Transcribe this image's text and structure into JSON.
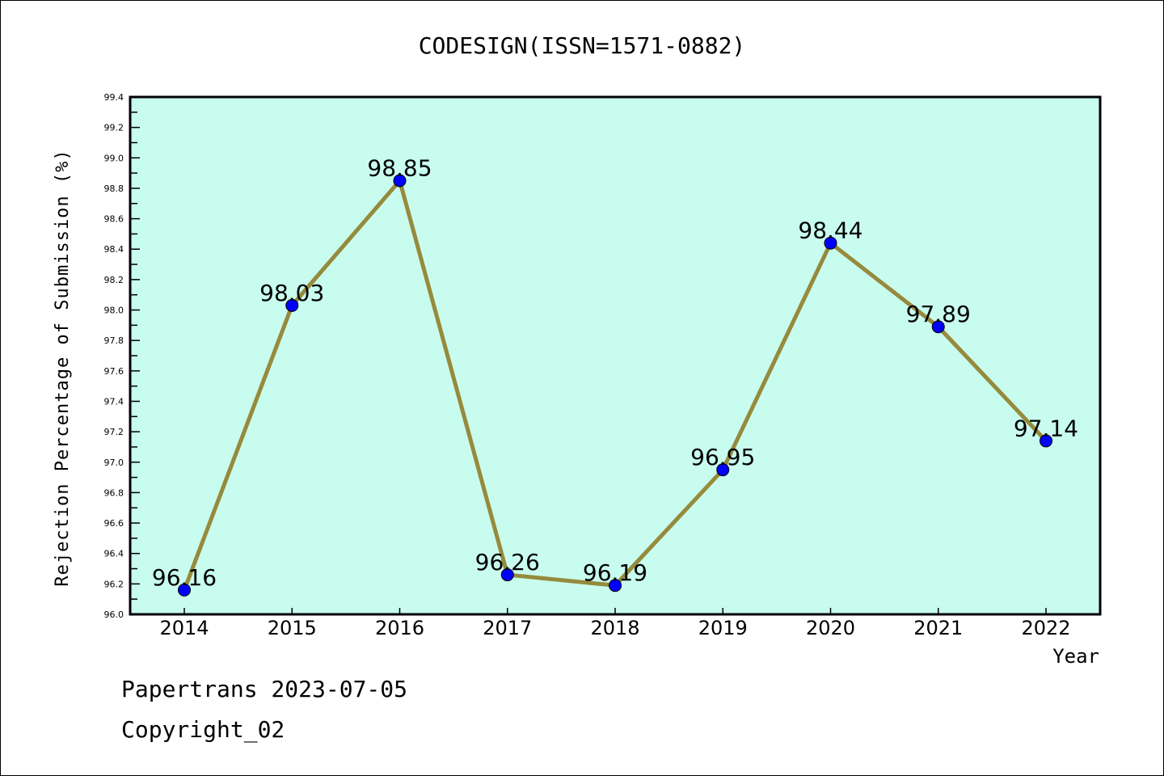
{
  "chart_data": {
    "type": "line",
    "title": "CODESIGN(ISSN=1571-0882)",
    "xlabel": "Year",
    "ylabel": "Rejection Percentage of Submission (%)",
    "categories": [
      "2014",
      "2015",
      "2016",
      "2017",
      "2018",
      "2019",
      "2020",
      "2021",
      "2022"
    ],
    "values": [
      96.16,
      98.03,
      98.85,
      96.26,
      96.19,
      96.95,
      98.44,
      97.89,
      97.14
    ],
    "data_labels": [
      "96.16",
      "98.03",
      "98.85",
      "96.26",
      "96.19",
      "96.95",
      "98.44",
      "97.89",
      "97.14"
    ],
    "ylim": [
      96.0,
      99.4
    ],
    "yticks": [
      "96.0",
      "96.2",
      "96.4",
      "96.6",
      "96.8",
      "97.0",
      "97.2",
      "97.4",
      "97.6",
      "97.8",
      "98.0",
      "98.2",
      "98.4",
      "98.6",
      "98.8",
      "99.0",
      "99.2",
      "99.4"
    ],
    "grid": false,
    "colors": {
      "background": "#c8fcee",
      "line": "#968a3c",
      "marker": "#0000ff"
    }
  },
  "footer": {
    "line1": "Papertrans 2023-07-05",
    "line2": "Copyright_02"
  }
}
